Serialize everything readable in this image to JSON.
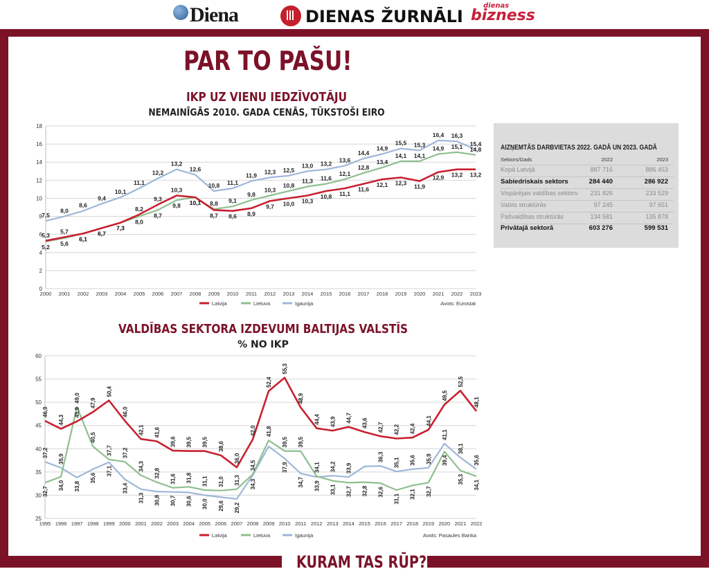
{
  "header": {
    "logos": [
      "Diena",
      "DIENAS ŽURNĀLI",
      "dienas",
      "bizness"
    ]
  },
  "headline": "PAR TO PAŠU!",
  "footer": "KURAM TAS RŪP?",
  "colors": {
    "frame": "#7b1228",
    "latvija": "#c8202f",
    "lietuva": "#8fbf8f",
    "igaunija": "#9fb6d8"
  },
  "chart_data": [
    {
      "type": "line",
      "title": "IKP UZ VIENU IEDZĪVOTĀJU",
      "subtitle": "NEMAINĪGĀS 2010. GADA CENĀS, TŪKSTOŠI EIRO",
      "source": "Avots: Eurostat",
      "x": [
        "2000",
        "2001",
        "2002",
        "2003",
        "2004",
        "2005",
        "2006",
        "2007",
        "2008",
        "2009",
        "2010",
        "2011",
        "2012",
        "2013",
        "2014",
        "2015",
        "2016",
        "2017",
        "2018",
        "2019",
        "2020",
        "2021",
        "2022",
        "2023"
      ],
      "yticks": [
        "0",
        "2",
        "4",
        "6",
        "8",
        "10",
        "12",
        "14",
        "16",
        "18"
      ],
      "ylim": [
        0,
        18
      ],
      "grid": true,
      "legend": "bottom-center",
      "series": [
        {
          "name": "Latvija",
          "values": [
            5.3,
            5.7,
            6.1,
            6.7,
            7.3,
            8.2,
            9.3,
            10.3,
            10.1,
            8.7,
            8.6,
            8.9,
            9.7,
            10.0,
            10.3,
            10.8,
            11.1,
            11.6,
            12.1,
            12.3,
            11.9,
            12.9,
            13.2,
            13.2
          ]
        },
        {
          "name": "Lietuva",
          "values": [
            5.2,
            5.6,
            6.1,
            6.7,
            7.3,
            8.0,
            8.7,
            9.8,
            10.1,
            8.8,
            9.1,
            9.8,
            10.3,
            10.8,
            11.3,
            11.6,
            12.1,
            12.8,
            13.4,
            14.1,
            14.1,
            14.9,
            15.1,
            14.8
          ]
        },
        {
          "name": "Igaunija",
          "values": [
            7.5,
            8.0,
            8.6,
            9.4,
            10.1,
            11.1,
            12.2,
            13.2,
            12.6,
            10.8,
            11.1,
            11.9,
            12.3,
            12.5,
            13.0,
            13.2,
            13.6,
            14.4,
            14.9,
            15.5,
            15.3,
            16.4,
            16.3,
            15.4
          ]
        }
      ],
      "labels": {
        "Latvija": [
          "5,3",
          "5,7",
          "6,1",
          "6,7",
          "7,3",
          "8,2",
          "9,3",
          "10,3",
          "10,1",
          "8,7",
          "8,6",
          "8,9",
          "9,7",
          "10,0",
          "10,3",
          "10,8",
          "11,1",
          "11,6",
          "12,1",
          "12,3",
          "11,9",
          "12,9",
          "13,2",
          "13,2"
        ],
        "Lietuva": [
          "5,2",
          "5,6",
          "6,1",
          "6,7",
          "7,3",
          "8,0",
          "8,7",
          "9,8",
          "10,1",
          "8,8",
          "9,1",
          "9,8",
          "10,3",
          "10,8",
          "11,3",
          "11,6",
          "12,1",
          "12,8",
          "13,4",
          "14,1",
          "14,1",
          "14,9",
          "15,1",
          "14,8"
        ],
        "Igaunija": [
          "7,5",
          "8,0",
          "8,6",
          "9,4",
          "10,1",
          "11,1",
          "12,2",
          "13,2",
          "12,6",
          "10,8",
          "11,1",
          "11,9",
          "12,3",
          "12,5",
          "13,0",
          "13,2",
          "13,6",
          "14,4",
          "14,9",
          "15,5",
          "15,3",
          "16,4",
          "16,3",
          "15,4"
        ]
      }
    },
    {
      "type": "line",
      "title": "VALDĪBAS SEKTORA IZDEVUMI BALTIJAS VALSTĪS",
      "subtitle": "% NO IKP",
      "source": "Avots: Pasaules Banka",
      "x": [
        "1995",
        "1996",
        "1997",
        "1998",
        "1999",
        "2000",
        "2001",
        "2002",
        "2003",
        "2004",
        "2005",
        "2006",
        "2007",
        "2008",
        "2009",
        "2010",
        "2011",
        "2012",
        "2013",
        "2014",
        "2015",
        "2016",
        "2017",
        "2018",
        "2019",
        "2020",
        "2021",
        "2022"
      ],
      "yticks": [
        "25",
        "30",
        "35",
        "40",
        "45",
        "50",
        "55",
        "60"
      ],
      "ylim": [
        25,
        60
      ],
      "grid": true,
      "legend": "bottom-center",
      "series": [
        {
          "name": "Latvija",
          "values": [
            46.0,
            44.3,
            45.9,
            47.9,
            50.4,
            46.0,
            42.1,
            41.6,
            39.6,
            39.5,
            39.5,
            38.6,
            36.0,
            42.0,
            52.4,
            55.3,
            48.9,
            44.4,
            43.9,
            44.7,
            43.6,
            42.7,
            42.2,
            42.4,
            44.1,
            49.5,
            52.5,
            48.1
          ]
        },
        {
          "name": "Lietuva",
          "values": [
            32.7,
            34.0,
            49.0,
            40.5,
            37.7,
            37.2,
            34.3,
            32.8,
            31.6,
            31.8,
            31.1,
            31.0,
            31.3,
            34.5,
            41.8,
            39.5,
            39.5,
            34.1,
            33.1,
            32.7,
            32.8,
            32.6,
            31.1,
            32.1,
            32.7,
            39.4,
            35.3,
            34.1
          ]
        },
        {
          "name": "Igaunija",
          "values": [
            37.2,
            35.9,
            33.8,
            35.6,
            37.1,
            33.4,
            31.3,
            30.8,
            30.7,
            30.6,
            30.0,
            29.6,
            29.2,
            34.3,
            40.5,
            37.9,
            34.7,
            33.9,
            34.2,
            33.9,
            36.2,
            36.3,
            35.1,
            35.6,
            35.9,
            41.1,
            38.1,
            35.6
          ]
        }
      ],
      "labels": {
        "Latvija": [
          "46,0",
          "44,3",
          "45,9",
          "47,9",
          "50,4",
          "46,0",
          "42,1",
          "41,6",
          "39,6",
          "39,5",
          "39,5",
          "38,6",
          "36,0",
          "42,0",
          "52,4",
          "55,3",
          "48,9",
          "44,4",
          "43,9",
          "44,7",
          "43,6",
          "42,7",
          "42,2",
          "42,4",
          "44,1",
          "49,5",
          "52,5",
          "48,1"
        ],
        "Lietuva": [
          "32,7",
          "34,0",
          "49,0",
          "40,5",
          "37,7",
          "37,2",
          "34,3",
          "32,8",
          "31,6",
          "31,8",
          "31,1",
          "31,0",
          "31,3",
          "34,5",
          "41,8",
          "39,5",
          "39,5",
          "34,1",
          "33,1",
          "32,7",
          "32,8",
          "32,6",
          "31,1",
          "32,1",
          "32,7",
          "39,4",
          "35,3",
          "34,1"
        ],
        "Igaunija": [
          "37,2",
          "35,9",
          "33,8",
          "35,6",
          "37,1",
          "33,4",
          "31,3",
          "30,8",
          "30,7",
          "30,6",
          "30,0",
          "29,6",
          "29,2",
          "34,3",
          "",
          "37,9",
          "34,7",
          "33,9",
          "34,2",
          "33,9",
          "",
          "36,3",
          "35,1",
          "35,6",
          "35,9",
          "41,1",
          "38,1",
          "35,6"
        ]
      }
    },
    {
      "type": "table",
      "title": "AIZŅEMTĀS DARBVIETAS 2022. GADĀ UN 2023. GADĀ",
      "columns": [
        "Sektors/Gads",
        "2022",
        "2023"
      ],
      "rows": [
        {
          "label": "Kopā Latvijā",
          "v2022": "887 716",
          "v2023": "886 453",
          "style": "light"
        },
        {
          "label": "Sabiedriskais sektors",
          "v2022": "284 440",
          "v2023": "286 922",
          "style": "bold"
        },
        {
          "label": "Vispārējais valdības sektors",
          "v2022": "231 826",
          "v2023": "233 529",
          "style": "light"
        },
        {
          "label": "Valsts struktūrās",
          "v2022": "97 245",
          "v2023": "97 651",
          "style": "light"
        },
        {
          "label": "Pašvaldības struktūrās",
          "v2022": "134 581",
          "v2023": "135 878",
          "style": "light"
        },
        {
          "label": "Privātajā sektorā",
          "v2022": "603 276",
          "v2023": "599 531",
          "style": "bold"
        }
      ]
    }
  ]
}
